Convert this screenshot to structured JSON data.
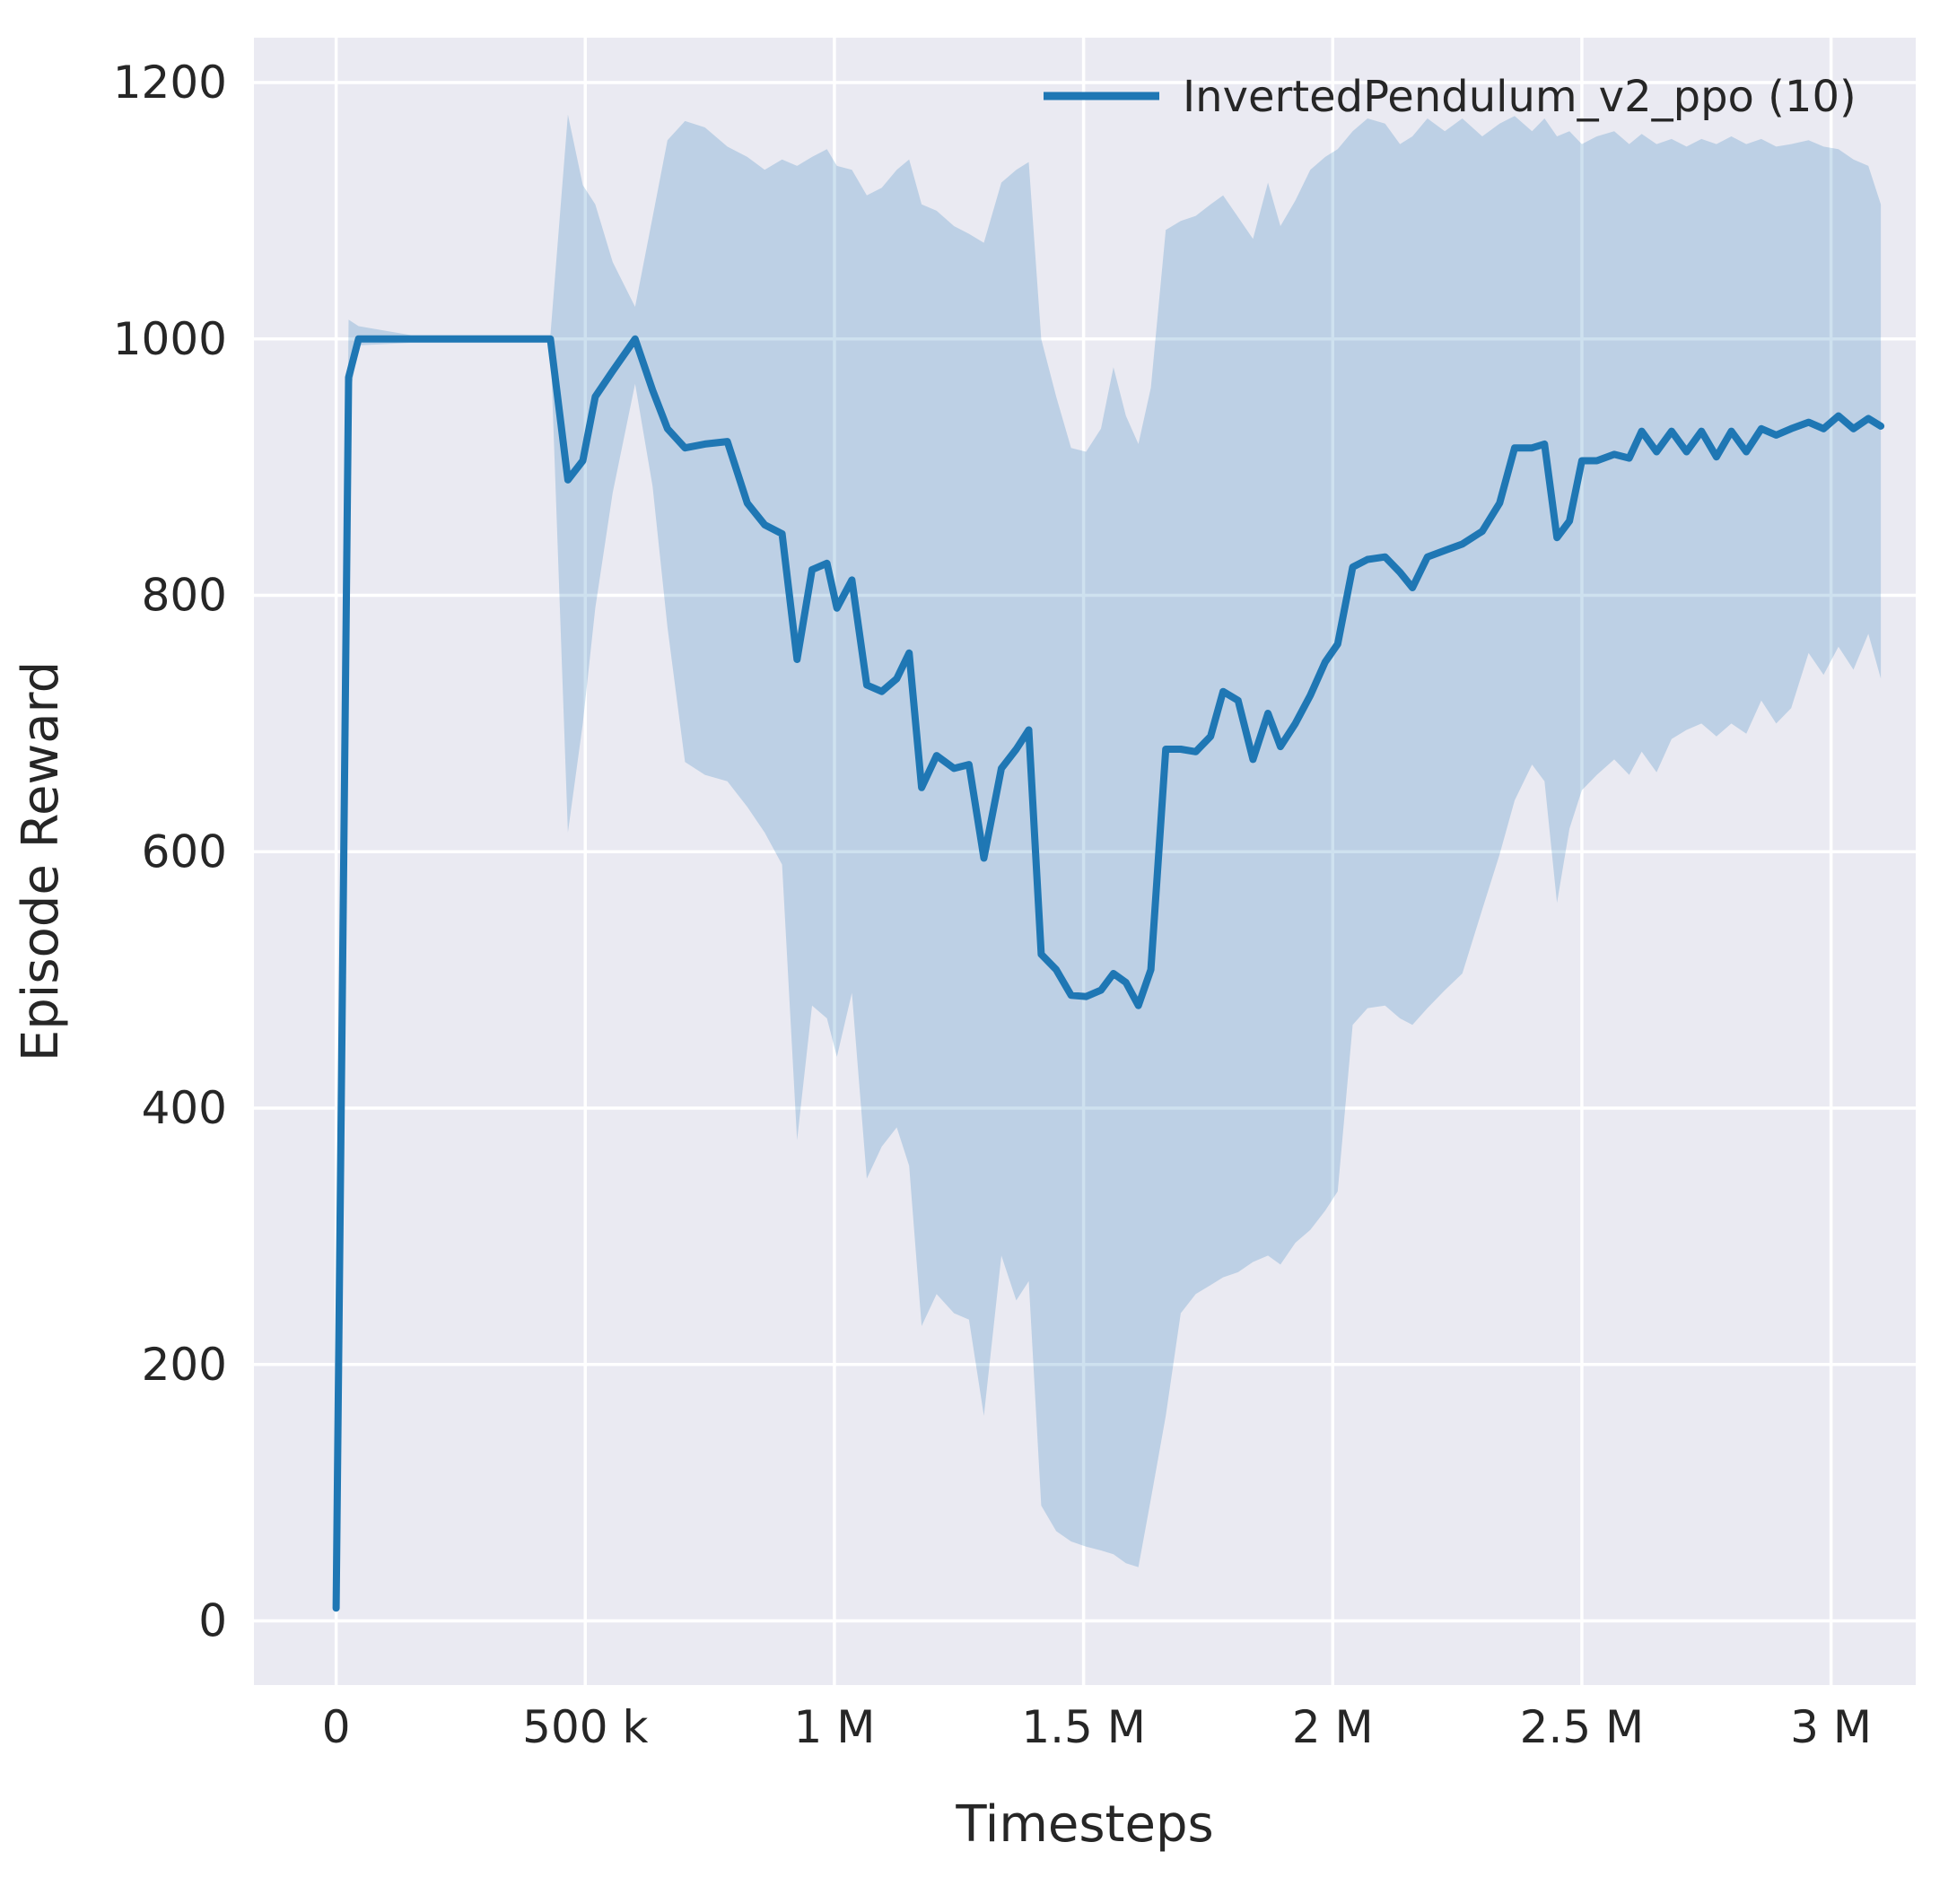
{
  "chart_data": {
    "type": "line",
    "title": "",
    "xlabel": "Timesteps",
    "ylabel": "Episode Reward",
    "legend": {
      "position": "upper right",
      "entries": [
        {
          "label": "InvertedPendulum_v2_ppo (10)",
          "color": "#1f77b4"
        }
      ]
    },
    "grid": true,
    "xlim": [
      -165000,
      3170000
    ],
    "ylim": [
      -50,
      1235
    ],
    "x_ticks": {
      "values": [
        0,
        500000,
        1000000,
        1500000,
        2000000,
        2500000,
        3000000
      ],
      "labels": [
        "0",
        "500 k",
        "1 M",
        "1.5 M",
        "2 M",
        "2.5 M",
        "3 M"
      ]
    },
    "y_ticks": {
      "values": [
        0,
        200,
        400,
        600,
        800,
        1000,
        1200
      ],
      "labels": [
        "0",
        "200",
        "400",
        "600",
        "800",
        "1000",
        "1200"
      ]
    },
    "colors": {
      "line": "#1f77b4",
      "band_fill": "#1f77b4",
      "band_opacity": 0.22,
      "plot_bg": "#eaeaf2",
      "grid": "#ffffff",
      "text": "#262626"
    },
    "series": [
      {
        "name": "InvertedPendulum_v2_ppo (10)",
        "x": [
          0,
          25000,
          45000,
          150000,
          300000,
          430000,
          465000,
          495000,
          520000,
          555000,
          600000,
          635000,
          665000,
          700000,
          740000,
          785000,
          825000,
          860000,
          895000,
          925000,
          955000,
          985000,
          1005000,
          1035000,
          1065000,
          1095000,
          1125000,
          1150000,
          1175000,
          1205000,
          1240000,
          1270000,
          1300000,
          1335000,
          1365000,
          1390000,
          1415000,
          1445000,
          1475000,
          1505000,
          1535000,
          1560000,
          1585000,
          1610000,
          1635000,
          1665000,
          1695000,
          1725000,
          1755000,
          1780000,
          1810000,
          1840000,
          1870000,
          1895000,
          1925000,
          1955000,
          1985000,
          2010000,
          2040000,
          2070000,
          2105000,
          2135000,
          2160000,
          2190000,
          2225000,
          2260000,
          2300000,
          2335000,
          2365000,
          2400000,
          2425000,
          2450000,
          2475000,
          2500000,
          2530000,
          2565000,
          2595000,
          2620000,
          2650000,
          2680000,
          2710000,
          2740000,
          2770000,
          2800000,
          2830000,
          2860000,
          2890000,
          2920000,
          2955000,
          2985000,
          3015000,
          3045000,
          3075000,
          3100000
        ],
        "mean": [
          10,
          970,
          1000,
          1000,
          1000,
          1000,
          890,
          905,
          955,
          975,
          1000,
          960,
          930,
          915,
          918,
          920,
          872,
          855,
          848,
          750,
          820,
          825,
          790,
          812,
          730,
          725,
          735,
          755,
          650,
          675,
          665,
          668,
          595,
          665,
          680,
          695,
          520,
          508,
          488,
          487,
          492,
          505,
          498,
          480,
          508,
          680,
          680,
          678,
          690,
          725,
          718,
          672,
          708,
          682,
          700,
          722,
          748,
          762,
          822,
          828,
          830,
          818,
          806,
          830,
          835,
          840,
          850,
          872,
          915,
          915,
          918,
          845,
          858,
          905,
          905,
          910,
          907,
          928,
          912,
          928,
          912,
          928,
          908,
          928,
          912,
          930,
          925,
          930,
          935,
          930,
          940,
          930,
          938,
          932
        ],
        "lower": [
          5,
          950,
          995,
          997,
          997,
          997,
          615,
          700,
          790,
          880,
          965,
          885,
          775,
          670,
          660,
          655,
          635,
          615,
          590,
          375,
          480,
          470,
          440,
          490,
          345,
          370,
          385,
          355,
          230,
          255,
          240,
          235,
          160,
          285,
          250,
          265,
          90,
          70,
          62,
          58,
          55,
          52,
          45,
          42,
          95,
          160,
          240,
          255,
          262,
          268,
          272,
          280,
          285,
          278,
          295,
          305,
          320,
          335,
          465,
          478,
          480,
          470,
          465,
          478,
          492,
          505,
          555,
          598,
          640,
          668,
          655,
          560,
          618,
          648,
          660,
          672,
          660,
          678,
          662,
          688,
          695,
          700,
          690,
          700,
          692,
          718,
          700,
          712,
          755,
          738,
          760,
          742,
          770,
          735
        ],
        "upper": [
          15,
          1015,
          1010,
          1003,
          1003,
          1003,
          1175,
          1120,
          1105,
          1060,
          1025,
          1095,
          1155,
          1170,
          1165,
          1150,
          1142,
          1132,
          1140,
          1135,
          1142,
          1148,
          1135,
          1132,
          1112,
          1118,
          1132,
          1140,
          1105,
          1100,
          1088,
          1082,
          1075,
          1122,
          1132,
          1138,
          1000,
          955,
          915,
          912,
          930,
          978,
          940,
          918,
          962,
          1085,
          1092,
          1096,
          1105,
          1112,
          1095,
          1078,
          1122,
          1088,
          1108,
          1132,
          1142,
          1148,
          1162,
          1172,
          1168,
          1152,
          1158,
          1172,
          1162,
          1172,
          1158,
          1168,
          1174,
          1162,
          1172,
          1158,
          1162,
          1152,
          1158,
          1162,
          1152,
          1160,
          1152,
          1156,
          1150,
          1156,
          1152,
          1158,
          1152,
          1156,
          1150,
          1152,
          1155,
          1150,
          1148,
          1140,
          1135,
          1105
        ]
      }
    ]
  }
}
